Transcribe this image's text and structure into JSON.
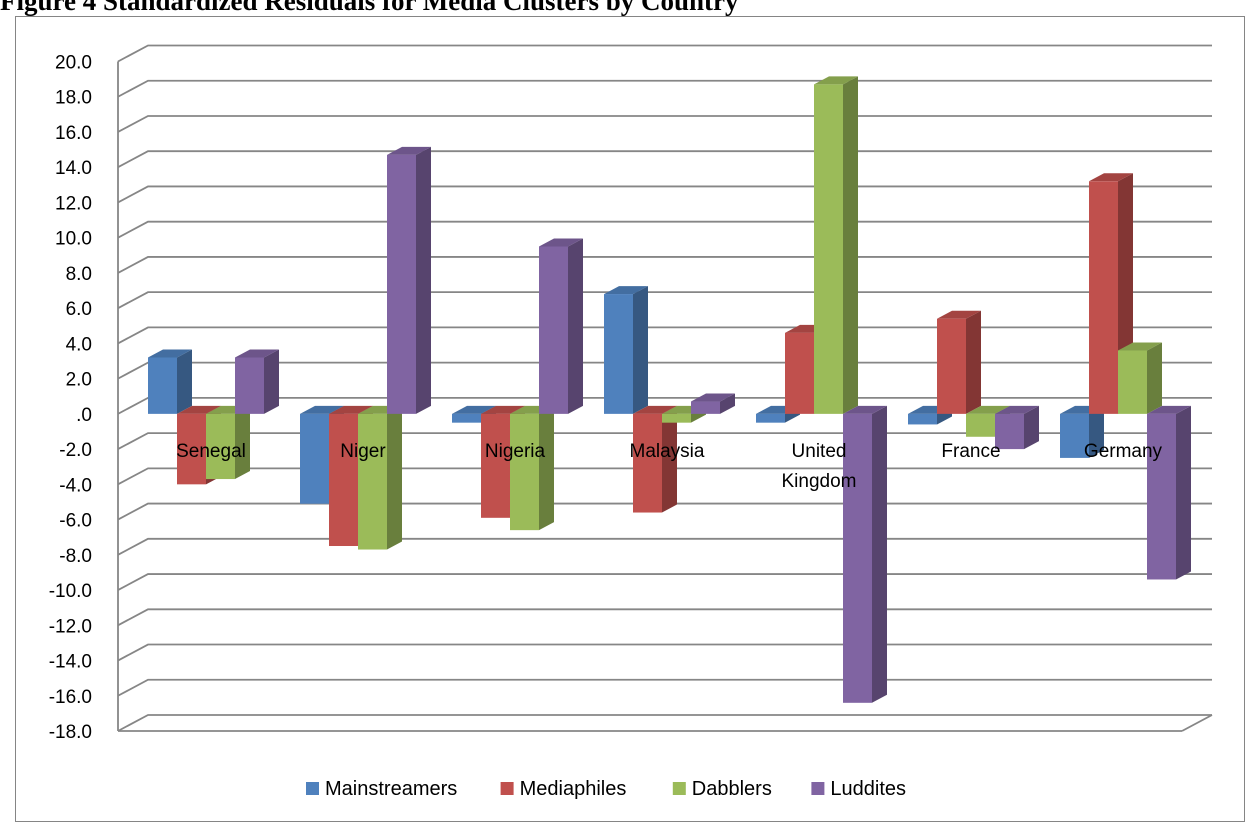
{
  "figure": {
    "caption": "Figure 4 Standardized Residuals for Media Clusters by Country"
  },
  "chart_data": {
    "type": "bar",
    "title": "",
    "xlabel": "",
    "ylabel": "",
    "ylim": [
      -18,
      20
    ],
    "ytick_step": 2,
    "ytick_labels": [
      "20.0",
      "18.0",
      "16.0",
      "14.0",
      "12.0",
      "10.0",
      "8.0",
      "6.0",
      "4.0",
      "2.0",
      ".0",
      "-2.0",
      "-4.0",
      "-6.0",
      "-8.0",
      "-10.0",
      "-12.0",
      "-14.0",
      "-16.0",
      "-18.0"
    ],
    "categories": [
      "Senegal",
      "Niger",
      "Nigeria",
      "Malaysia",
      "United Kingdom",
      "France",
      "Germany"
    ],
    "category_labels": [
      [
        "Senegal"
      ],
      [
        "Niger"
      ],
      [
        "Nigeria"
      ],
      [
        "Malaysia"
      ],
      [
        "United",
        "Kingdom"
      ],
      [
        "France"
      ],
      [
        "Germany"
      ]
    ],
    "series": [
      {
        "name": "Mainstreamers",
        "color": "#4F81BD",
        "values": [
          3.2,
          -5.1,
          -0.5,
          6.8,
          -0.5,
          -0.6,
          -2.5
        ]
      },
      {
        "name": "Mediaphiles",
        "color": "#C0504D",
        "values": [
          -4.0,
          -7.5,
          -5.9,
          -5.6,
          4.6,
          5.4,
          13.2
        ]
      },
      {
        "name": "Dabblers",
        "color": "#9BBB59",
        "values": [
          -3.7,
          -7.7,
          -6.6,
          -0.5,
          18.7,
          -1.3,
          3.6
        ]
      },
      {
        "name": "Luddites",
        "color": "#8064A2",
        "values": [
          3.2,
          14.7,
          9.5,
          0.7,
          -16.4,
          -2.0,
          -9.4
        ]
      }
    ],
    "grid": true,
    "legend_position": "bottom",
    "style": "3d-clustered-column"
  }
}
